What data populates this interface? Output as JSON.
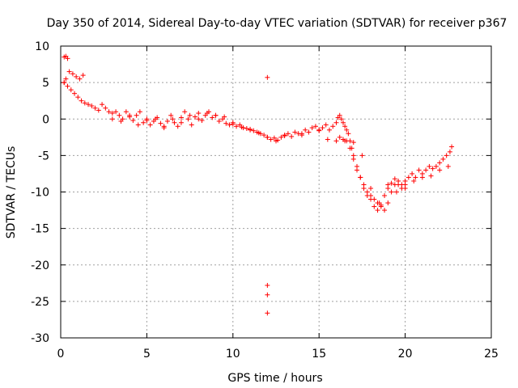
{
  "chart_data": {
    "type": "scatter",
    "title": "Day 350 of 2014, Sidereal Day-to-day VTEC variation (SDTVAR) for receiver p367",
    "xlabel": "GPS time / hours",
    "ylabel": "SDTVAR / TECUs",
    "xlim": [
      0,
      25
    ],
    "ylim": [
      -30,
      10
    ],
    "xticks": [
      0,
      5,
      10,
      15,
      20,
      25
    ],
    "yticks": [
      10,
      5,
      0,
      -5,
      -10,
      -15,
      -20,
      -25,
      -30
    ],
    "grid": true,
    "legend": "none",
    "marker": "+",
    "series_color": "#ff0000",
    "series": [
      {
        "name": "SDTVAR",
        "x": [
          0.2,
          0.3,
          0.4,
          0.2,
          0.3,
          0.5,
          0.7,
          0.9,
          1.1,
          1.3,
          0.2,
          0.4,
          0.6,
          0.8,
          1.0,
          1.2,
          1.4,
          1.6,
          1.8,
          2.0,
          2.2,
          2.4,
          2.6,
          2.8,
          3.0,
          3.2,
          3.4,
          3.6,
          3.8,
          4.0,
          4.2,
          4.4,
          4.6,
          4.8,
          5.0,
          5.2,
          5.4,
          5.6,
          5.8,
          6.0,
          6.2,
          6.4,
          6.6,
          6.8,
          7.0,
          7.2,
          7.4,
          7.6,
          7.8,
          8.0,
          8.2,
          8.4,
          8.6,
          8.8,
          9.0,
          9.2,
          9.4,
          9.6,
          9.8,
          10.0,
          10.2,
          10.4,
          10.6,
          10.8,
          11.0,
          11.2,
          11.4,
          11.6,
          11.8,
          12.0,
          12.2,
          12.4,
          12.6,
          12.8,
          13.0,
          13.2,
          13.4,
          13.6,
          13.8,
          14.0,
          14.2,
          14.4,
          14.6,
          14.8,
          15.0,
          15.2,
          15.4,
          15.6,
          15.8,
          16.0,
          16.1,
          16.2,
          16.3,
          16.4,
          16.5,
          16.6,
          16.7,
          16.8,
          16.9,
          17.0,
          17.2,
          17.4,
          17.6,
          17.8,
          18.0,
          18.2,
          18.4,
          18.6,
          18.8,
          19.0,
          19.2,
          19.4,
          19.6,
          19.8,
          20.0,
          20.2,
          20.4,
          20.6,
          20.8,
          21.0,
          21.2,
          21.4,
          21.6,
          21.8,
          22.0,
          22.2,
          22.4,
          22.6,
          22.7,
          3.0,
          3.5,
          4.0,
          4.5,
          5.0,
          5.5,
          6.0,
          6.5,
          7.0,
          7.5,
          8.0,
          8.5,
          9.0,
          9.5,
          10.0,
          10.5,
          11.0,
          11.5,
          12.0,
          12.5,
          13.0,
          14.0,
          15.0,
          15.5,
          16.0,
          16.5,
          17.0,
          17.5,
          18.0,
          18.5,
          19.0,
          19.5,
          20.0,
          20.5,
          21.0,
          21.5,
          22.0,
          22.5,
          16.2,
          16.4,
          16.6,
          16.8,
          17.0,
          17.2,
          17.4,
          17.6,
          17.8,
          18.0,
          18.2,
          18.4,
          18.6,
          18.8,
          19.0,
          19.2,
          19.4,
          19.6,
          19.8,
          20.0,
          12.0,
          12.0,
          12.0,
          12.0
        ],
        "y": [
          8.5,
          8.6,
          8.3,
          5.0,
          5.5,
          6.5,
          6.2,
          5.8,
          5.5,
          6.0,
          5.0,
          4.5,
          4.0,
          3.5,
          3.0,
          2.5,
          2.2,
          2.0,
          1.8,
          1.5,
          1.2,
          2.0,
          1.5,
          1.0,
          0.8,
          1.0,
          0.5,
          0.0,
          1.0,
          0.5,
          -0.2,
          0.5,
          1.0,
          -0.5,
          0.0,
          -0.8,
          -0.3,
          0.2,
          -0.6,
          -1.2,
          -0.3,
          0.5,
          -0.5,
          -1.0,
          0.2,
          1.0,
          0.0,
          -0.8,
          0.3,
          0.8,
          -0.2,
          0.5,
          1.0,
          0.2,
          0.5,
          -0.3,
          0.0,
          -0.6,
          -0.8,
          -0.5,
          -1.0,
          -0.8,
          -1.2,
          -1.3,
          -1.5,
          -1.6,
          -1.8,
          -2.0,
          -2.2,
          -2.5,
          -2.8,
          -2.6,
          -2.9,
          -2.5,
          -2.2,
          -2.0,
          -2.4,
          -1.8,
          -2.0,
          -2.2,
          -1.5,
          -1.8,
          -1.2,
          -1.0,
          -1.5,
          -1.2,
          -0.8,
          -1.5,
          -1.0,
          -0.5,
          0.2,
          0.5,
          0.0,
          -0.5,
          -1.0,
          -1.5,
          -2.0,
          -3.0,
          -4.0,
          -5.0,
          -6.5,
          -8.0,
          -9.0,
          -10.0,
          -10.5,
          -11.0,
          -11.5,
          -12.0,
          -12.5,
          -11.5,
          -10.0,
          -9.0,
          -8.5,
          -9.0,
          -8.5,
          -8.0,
          -7.5,
          -8.0,
          -7.0,
          -7.5,
          -7.0,
          -6.5,
          -6.8,
          -6.5,
          -6.0,
          -5.5,
          -5.0,
          -4.5,
          -3.8,
          0.0,
          -0.3,
          0.3,
          -0.8,
          -0.2,
          0.0,
          -1.0,
          0.0,
          -0.5,
          0.5,
          0.0,
          0.8,
          0.5,
          0.3,
          -0.7,
          -1.1,
          -1.4,
          -1.9,
          -2.5,
          -3.0,
          -2.3,
          -2.0,
          -1.6,
          -2.8,
          -3.0,
          -3.0,
          -3.2,
          -5.0,
          -9.5,
          -11.5,
          -9.0,
          -10.0,
          -9.5,
          -8.5,
          -8.0,
          -7.8,
          -7.0,
          -6.5,
          -2.5,
          -2.8,
          -3.0,
          -4.0,
          -5.5,
          -7.0,
          -8.0,
          -9.5,
          -10.5,
          -11.0,
          -12.0,
          -12.5,
          -11.8,
          -10.5,
          -9.5,
          -8.8,
          -8.2,
          -9.0,
          -9.5,
          -9.0,
          5.7,
          -22.8,
          -24.1,
          -26.6
        ]
      }
    ]
  }
}
